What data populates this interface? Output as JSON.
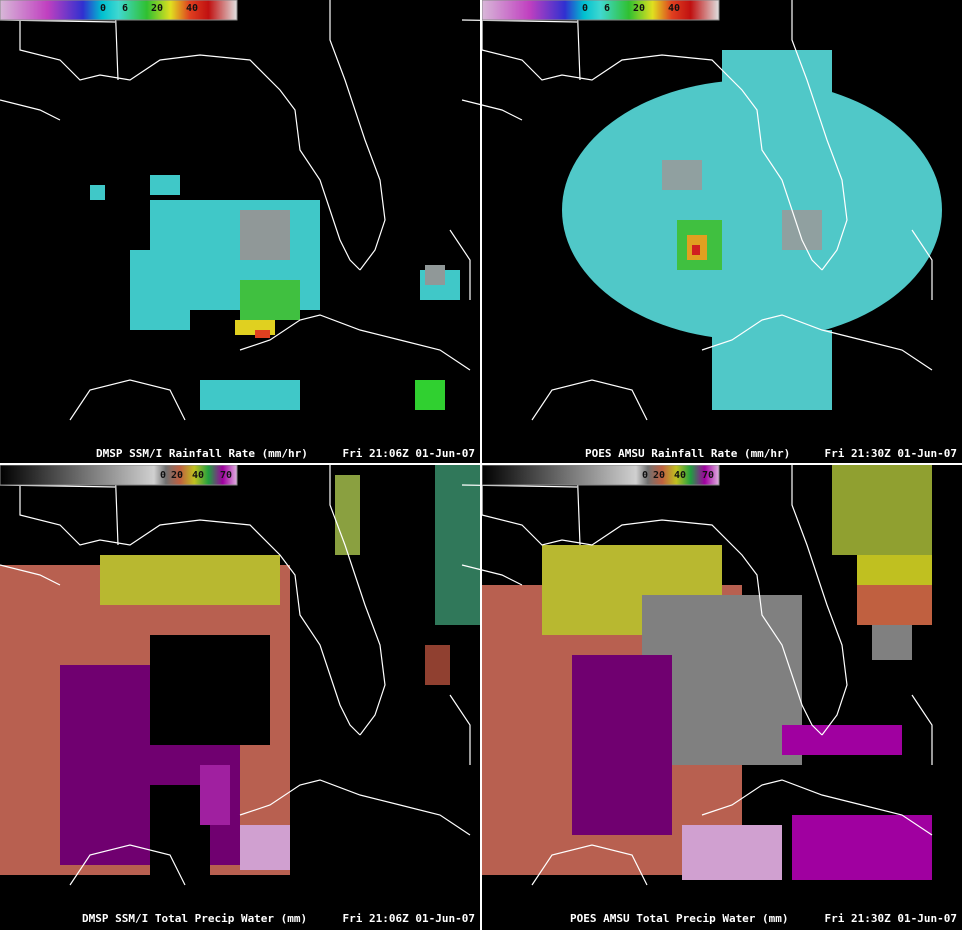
{
  "panels": [
    {
      "caption": "DMSP SSM/I Rainfall Rate (mm/hr)",
      "time": "Fri 21:06Z 01-Jun-07",
      "scale_labels": [
        "0",
        "6",
        "20",
        "40"
      ]
    },
    {
      "caption": "POES AMSU Rainfall Rate (mm/hr)",
      "time": "Fri 21:30Z 01-Jun-07",
      "scale_labels": [
        "0",
        "6",
        "20",
        "40"
      ]
    },
    {
      "caption": "DMSP SSM/I Total Precip Water (mm)",
      "time": "Fri 21:06Z 01-Jun-07",
      "scale_labels": [
        "0",
        "20",
        "40",
        "70"
      ]
    },
    {
      "caption": "POES AMSU Total Precip Water (mm)",
      "time": "Fri 21:30Z 01-Jun-07",
      "scale_labels": [
        "0",
        "20",
        "40",
        "70"
      ]
    }
  ]
}
